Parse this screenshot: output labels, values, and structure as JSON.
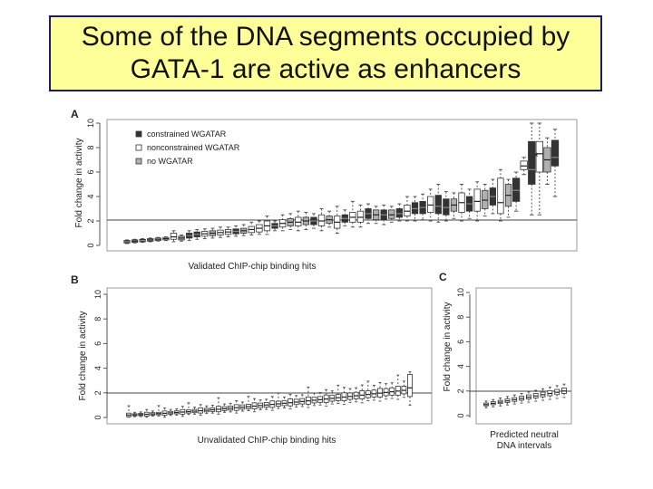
{
  "slide": {
    "title_line1": "Some of the DNA segments occupied by",
    "title_line2": "GATA-1 are active as enhancers"
  },
  "colors": {
    "title_bg": "#ffff99",
    "title_border": "#1a1a6e",
    "constrained": "#333333",
    "nonconstrained": "#ffffff",
    "no_wgatar": "#b0b0b0"
  },
  "chart_data": [
    {
      "panel": "A",
      "type": "box",
      "xlabel": "Validated ChIP-chip binding hits",
      "ylabel": "Fold change in activity",
      "ylim": [
        0,
        10
      ],
      "yticks": [
        0,
        2,
        4,
        6,
        8,
        10
      ],
      "reference_line": 2,
      "legend": {
        "placement": "top-left",
        "entries": [
          "constrained WGATAR",
          "nonconstrained WGATAR",
          "no WGATAR"
        ]
      },
      "annotation": "*",
      "boxes": [
        {
          "group": "constrained WGATAR",
          "median": 0.3,
          "q1": 0.2,
          "q3": 0.4,
          "low": 0.15,
          "high": 0.45
        },
        {
          "group": "no WGATAR",
          "median": 0.35,
          "q1": 0.25,
          "q3": 0.45,
          "low": 0.2,
          "high": 0.5
        },
        {
          "group": "constrained WGATAR",
          "median": 0.4,
          "q1": 0.3,
          "q3": 0.5,
          "low": 0.25,
          "high": 0.55
        },
        {
          "group": "no WGATAR",
          "median": 0.45,
          "q1": 0.35,
          "q3": 0.55,
          "low": 0.3,
          "high": 0.6
        },
        {
          "group": "nonconstrained WGATAR",
          "median": 0.5,
          "q1": 0.4,
          "q3": 0.6,
          "low": 0.35,
          "high": 0.65
        },
        {
          "group": "nonconstrained WGATAR",
          "median": 0.55,
          "q1": 0.45,
          "q3": 0.65,
          "low": 0.4,
          "high": 0.7
        },
        {
          "group": "nonconstrained WGATAR",
          "median": 0.7,
          "q1": 0.5,
          "q3": 1.0,
          "low": 0.3,
          "high": 1.2
        },
        {
          "group": "no WGATAR",
          "median": 0.6,
          "q1": 0.45,
          "q3": 0.75,
          "low": 0.35,
          "high": 0.85
        },
        {
          "group": "constrained WGATAR",
          "median": 0.8,
          "q1": 0.6,
          "q3": 1.0,
          "low": 0.4,
          "high": 1.2
        },
        {
          "group": "constrained WGATAR",
          "median": 0.9,
          "q1": 0.7,
          "q3": 1.1,
          "low": 0.5,
          "high": 1.3
        },
        {
          "group": "nonconstrained WGATAR",
          "median": 0.95,
          "q1": 0.75,
          "q3": 1.15,
          "low": 0.55,
          "high": 1.35
        },
        {
          "group": "no WGATAR",
          "median": 1.0,
          "q1": 0.8,
          "q3": 1.2,
          "low": 0.6,
          "high": 1.4
        },
        {
          "group": "nonconstrained WGATAR",
          "median": 1.05,
          "q1": 0.85,
          "q3": 1.25,
          "low": 0.65,
          "high": 1.5
        },
        {
          "group": "nonconstrained WGATAR",
          "median": 1.1,
          "q1": 0.9,
          "q3": 1.3,
          "low": 0.7,
          "high": 1.5
        },
        {
          "group": "constrained WGATAR",
          "median": 1.15,
          "q1": 0.95,
          "q3": 1.35,
          "low": 0.75,
          "high": 1.6
        },
        {
          "group": "no WGATAR",
          "median": 1.2,
          "q1": 1.0,
          "q3": 1.4,
          "low": 0.8,
          "high": 1.7
        },
        {
          "group": "nonconstrained WGATAR",
          "median": 1.3,
          "q1": 1.05,
          "q3": 1.55,
          "low": 0.85,
          "high": 1.9
        },
        {
          "group": "nonconstrained WGATAR",
          "median": 1.4,
          "q1": 1.1,
          "q3": 1.7,
          "low": 0.9,
          "high": 2.0
        },
        {
          "group": "nonconstrained WGATAR",
          "median": 1.6,
          "q1": 1.2,
          "q3": 2.0,
          "low": 0.9,
          "high": 2.4
        },
        {
          "group": "constrained WGATAR",
          "median": 1.6,
          "q1": 1.4,
          "q3": 1.8,
          "low": 1.2,
          "high": 2.0
        },
        {
          "group": "nonconstrained WGATAR",
          "median": 1.8,
          "q1": 1.5,
          "q3": 2.1,
          "low": 1.2,
          "high": 2.5
        },
        {
          "group": "no WGATAR",
          "median": 1.9,
          "q1": 1.6,
          "q3": 2.2,
          "low": 1.3,
          "high": 2.6
        },
        {
          "group": "nonconstrained WGATAR",
          "median": 1.9,
          "q1": 1.6,
          "q3": 2.3,
          "low": 1.2,
          "high": 2.8
        },
        {
          "group": "no WGATAR",
          "median": 2.0,
          "q1": 1.7,
          "q3": 2.3,
          "low": 1.3,
          "high": 2.7
        },
        {
          "group": "constrained WGATAR",
          "median": 2.0,
          "q1": 1.7,
          "q3": 2.3,
          "low": 1.4,
          "high": 2.6
        },
        {
          "group": "nonconstrained WGATAR",
          "median": 2.0,
          "q1": 1.6,
          "q3": 2.5,
          "low": 1.2,
          "high": 3.0
        },
        {
          "group": "no WGATAR",
          "median": 2.1,
          "q1": 1.8,
          "q3": 2.4,
          "low": 1.5,
          "high": 2.8
        },
        {
          "group": "nonconstrained WGATAR",
          "median": 1.9,
          "q1": 1.4,
          "q3": 2.4,
          "low": 1.0,
          "high": 3.2
        },
        {
          "group": "constrained WGATAR",
          "median": 2.2,
          "q1": 1.9,
          "q3": 2.5,
          "low": 1.6,
          "high": 2.9
        },
        {
          "group": "nonconstrained WGATAR",
          "median": 2.3,
          "q1": 1.9,
          "q3": 2.7,
          "low": 1.5,
          "high": 3.6
        },
        {
          "group": "nonconstrained WGATAR",
          "median": 2.3,
          "q1": 1.9,
          "q3": 2.8,
          "low": 1.5,
          "high": 3.3
        },
        {
          "group": "constrained WGATAR",
          "median": 2.6,
          "q1": 2.2,
          "q3": 3.0,
          "low": 1.8,
          "high": 3.4
        },
        {
          "group": "no WGATAR",
          "median": 2.5,
          "q1": 2.1,
          "q3": 2.9,
          "low": 1.8,
          "high": 3.2
        },
        {
          "group": "constrained WGATAR",
          "median": 2.5,
          "q1": 2.1,
          "q3": 2.9,
          "low": 1.7,
          "high": 3.3
        },
        {
          "group": "no WGATAR",
          "median": 2.5,
          "q1": 2.2,
          "q3": 2.9,
          "low": 1.9,
          "high": 3.2
        },
        {
          "group": "constrained WGATAR",
          "median": 2.6,
          "q1": 2.3,
          "q3": 3.0,
          "low": 2.0,
          "high": 3.4
        },
        {
          "group": "nonconstrained WGATAR",
          "median": 2.8,
          "q1": 2.4,
          "q3": 3.3,
          "low": 2.0,
          "high": 4.0
        },
        {
          "group": "constrained WGATAR",
          "median": 3.0,
          "q1": 2.6,
          "q3": 3.5,
          "low": 2.0,
          "high": 4.0
        },
        {
          "group": "constrained WGATAR",
          "median": 3.1,
          "q1": 2.6,
          "q3": 3.6,
          "low": 2.1,
          "high": 4.2
        },
        {
          "group": "nonconstrained WGATAR",
          "median": 3.3,
          "q1": 2.7,
          "q3": 4.0,
          "low": 2.0,
          "high": 4.6
        },
        {
          "group": "constrained WGATAR",
          "median": 3.2,
          "q1": 2.6,
          "q3": 4.1,
          "low": 1.9,
          "high": 5.0
        },
        {
          "group": "constrained WGATAR",
          "median": 3.1,
          "q1": 2.5,
          "q3": 3.8,
          "low": 2.0,
          "high": 4.4
        },
        {
          "group": "no WGATAR",
          "median": 3.3,
          "q1": 2.8,
          "q3": 3.8,
          "low": 2.2,
          "high": 4.3
        },
        {
          "group": "nonconstrained WGATAR",
          "median": 3.5,
          "q1": 2.7,
          "q3": 4.3,
          "low": 2.0,
          "high": 5.0
        },
        {
          "group": "constrained WGATAR",
          "median": 3.4,
          "q1": 2.8,
          "q3": 4.0,
          "low": 2.2,
          "high": 4.6
        },
        {
          "group": "nonconstrained WGATAR",
          "median": 3.6,
          "q1": 2.8,
          "q3": 4.6,
          "low": 2.0,
          "high": 5.2
        },
        {
          "group": "no WGATAR",
          "median": 3.7,
          "q1": 3.0,
          "q3": 4.5,
          "low": 2.4,
          "high": 5.0
        },
        {
          "group": "constrained WGATAR",
          "median": 4.0,
          "q1": 3.3,
          "q3": 4.7,
          "low": 2.6,
          "high": 5.4
        },
        {
          "group": "nonconstrained WGATAR",
          "median": 3.5,
          "q1": 2.6,
          "q3": 5.5,
          "low": 2.0,
          "high": 6.2
        },
        {
          "group": "no WGATAR",
          "median": 4.1,
          "q1": 3.2,
          "q3": 5.0,
          "low": 2.3,
          "high": 5.4
        },
        {
          "group": "constrained WGATAR",
          "median": 4.5,
          "q1": 3.6,
          "q3": 5.5,
          "low": 2.8,
          "high": 6.0
        },
        {
          "group": "nonconstrained WGATAR",
          "median": 6.5,
          "q1": 6.2,
          "q3": 6.9,
          "low": 5.8,
          "high": 7.2
        },
        {
          "group": "constrained WGATAR",
          "median": 6.2,
          "q1": 5.0,
          "q3": 8.5,
          "low": 2.5,
          "high": 10.0
        },
        {
          "group": "nonconstrained WGATAR",
          "median": 7.5,
          "q1": 6.0,
          "q3": 8.5,
          "low": 2.5,
          "high": 10.0
        },
        {
          "group": "no WGATAR",
          "median": 7.0,
          "q1": 6.0,
          "q3": 8.0,
          "low": 5.0,
          "high": 8.8
        },
        {
          "group": "constrained WGATAR",
          "median": 7.2,
          "q1": 6.5,
          "q3": 8.6,
          "low": 4.0,
          "high": 9.5
        }
      ]
    },
    {
      "panel": "B",
      "type": "box",
      "xlabel": "Unvalidated ChIP-chip binding hits",
      "ylabel": "Fold change in activity",
      "ylim": [
        0,
        10
      ],
      "yticks": [
        0,
        2,
        4,
        6,
        8,
        10
      ],
      "reference_line": 2,
      "box_count": 48,
      "median_start": 0.2,
      "median_end": 2.2,
      "last_box": {
        "median": 2.4,
        "q1": 1.7,
        "q3": 3.5,
        "low": 1.0,
        "high": 3.7
      }
    },
    {
      "panel": "C",
      "type": "box",
      "xlabel_line1": "Predicted neutral",
      "xlabel_line2": "DNA intervals",
      "ylabel": "Fold change in activity",
      "ylim": [
        0,
        10
      ],
      "yticks": [
        0,
        2,
        4,
        6,
        8,
        10
      ],
      "reference_line": 2,
      "box_count": 12,
      "median_start": 0.9,
      "median_end": 2.0
    }
  ]
}
